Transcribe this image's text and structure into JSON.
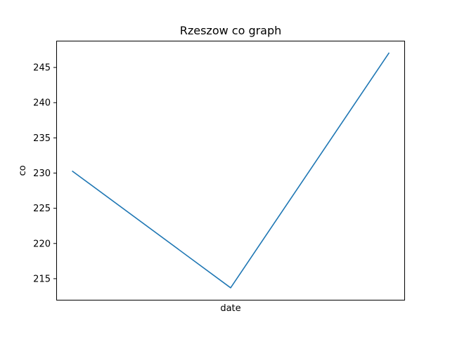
{
  "chart_data": {
    "type": "line",
    "title": "Rzeszow co graph",
    "xlabel": "date",
    "ylabel": "co",
    "x": [
      0,
      1,
      2
    ],
    "x_tick_labels": [],
    "series": [
      {
        "values": [
          230.3,
          213.7,
          247.1
        ],
        "color": "#1f77b4"
      }
    ],
    "ylim": [
      212.0,
      248.8
    ],
    "xlim": [
      -0.1,
      2.1
    ],
    "yticks": [
      215,
      220,
      225,
      230,
      235,
      240,
      245
    ],
    "grid": false,
    "legend": "none"
  }
}
